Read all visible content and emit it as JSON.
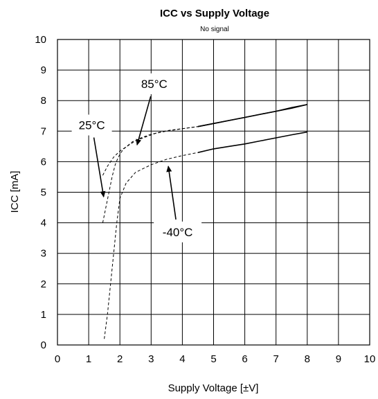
{
  "chart_data": {
    "type": "line",
    "title": "ICC vs Supply Voltage",
    "subtitle": "No signal",
    "xlabel": "Supply Voltage [±V]",
    "ylabel": "ICC [mA]",
    "xlim": [
      0,
      10
    ],
    "ylim": [
      0,
      10
    ],
    "xticks": [
      "0",
      "1",
      "2",
      "3",
      "4",
      "5",
      "6",
      "7",
      "8",
      "9",
      "10"
    ],
    "yticks": [
      "0",
      "1",
      "2",
      "3",
      "4",
      "5",
      "6",
      "7",
      "8",
      "9",
      "10"
    ],
    "grid": true,
    "series": [
      {
        "name": "85°C",
        "x": [
          1.45,
          1.6,
          1.8,
          2.0,
          2.3,
          2.6,
          3.0,
          3.5,
          4.0,
          4.5,
          5.0,
          5.5,
          6.0,
          6.5,
          7.0,
          7.5,
          8.0
        ],
        "y": [
          5.55,
          5.85,
          6.15,
          6.35,
          6.55,
          6.75,
          6.9,
          7.0,
          7.08,
          7.15,
          7.25,
          7.35,
          7.45,
          7.55,
          7.65,
          7.75,
          7.87
        ]
      },
      {
        "name": "25°C",
        "x": [
          1.45,
          1.55,
          1.65,
          1.75,
          1.85,
          1.95,
          2.1,
          2.4,
          2.8,
          3.2,
          3.6,
          4.0,
          4.5,
          5.0,
          5.5,
          6.0,
          6.5,
          7.0,
          7.5,
          8.0
        ],
        "y": [
          4.0,
          4.5,
          5.0,
          5.5,
          5.9,
          6.15,
          6.4,
          6.65,
          6.8,
          6.95,
          7.03,
          7.08,
          7.15,
          7.25,
          7.35,
          7.45,
          7.55,
          7.65,
          7.77,
          7.87
        ]
      },
      {
        "name": "-40°C",
        "x": [
          1.5,
          1.6,
          1.7,
          1.8,
          1.9,
          2.0,
          2.2,
          2.5,
          3.0,
          3.5,
          4.0,
          4.5,
          5.0,
          5.5,
          6.0,
          6.5,
          7.0,
          7.5,
          8.0
        ],
        "y": [
          0.2,
          1.0,
          2.0,
          3.0,
          4.0,
          4.8,
          5.3,
          5.65,
          5.9,
          6.08,
          6.2,
          6.3,
          6.42,
          6.5,
          6.58,
          6.68,
          6.78,
          6.88,
          6.97
        ]
      }
    ],
    "annotations": [
      {
        "text": "85°C",
        "x": 3.1,
        "y": 8.55,
        "arrow_to_x": 2.55,
        "arrow_to_y": 6.55
      },
      {
        "text": "25°C",
        "x": 1.1,
        "y": 7.2,
        "arrow_to_x": 1.48,
        "arrow_to_y": 4.85
      },
      {
        "text": "-40°C",
        "x": 3.85,
        "y": 3.7,
        "arrow_to_x": 3.55,
        "arrow_to_y": 5.85
      }
    ]
  }
}
